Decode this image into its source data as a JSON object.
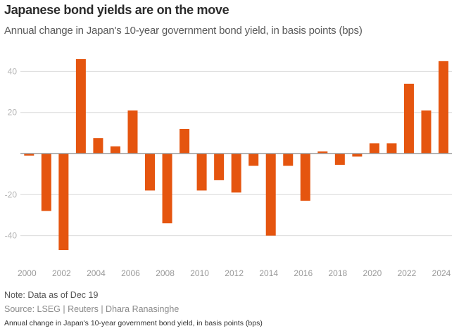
{
  "header": {
    "title": "Japanese bond yields are on the move",
    "subtitle": "Annual change in Japan's 10-year government bond yield, in basis points (bps)"
  },
  "footer": {
    "note": "Note: Data as of Dec 19",
    "source": "Source: LSEG | Reuters | Dhara Ranasinghe",
    "caption": "Annual change in Japan's 10-year government bond yield, in basis points (bps)"
  },
  "chart_data": {
    "type": "bar",
    "title": "Japanese bond yields are on the move",
    "subtitle": "Annual change in Japan's 10-year government bond yield, in basis points (bps)",
    "xlabel": "",
    "ylabel": "bps",
    "categories": [
      "2000",
      "2001",
      "2002",
      "2003",
      "2004",
      "2005",
      "2006",
      "2007",
      "2008",
      "2009",
      "2010",
      "2011",
      "2012",
      "2013",
      "2014",
      "2015",
      "2016",
      "2017",
      "2018",
      "2019",
      "2020",
      "2021",
      "2022",
      "2023",
      "2024"
    ],
    "values": [
      -1,
      -28,
      -47,
      46,
      7.5,
      3.5,
      21,
      -18,
      -34,
      12,
      -18,
      -13,
      -19,
      -6,
      -40,
      -6,
      -23,
      1,
      -5.5,
      -1.5,
      5,
      5,
      34,
      21,
      45
    ],
    "ylim": [
      -55,
      55
    ],
    "yticks": [
      40,
      20,
      -20,
      -40
    ],
    "xticks": [
      "2000",
      "2002",
      "2004",
      "2006",
      "2008",
      "2010",
      "2012",
      "2014",
      "2016",
      "2018",
      "2020",
      "2022",
      "2024"
    ],
    "grid": true,
    "legend": "none",
    "colors": {
      "bar": "#E5550F",
      "grid": "#dcdcdc",
      "zero_line": "#9a9a9a"
    }
  }
}
